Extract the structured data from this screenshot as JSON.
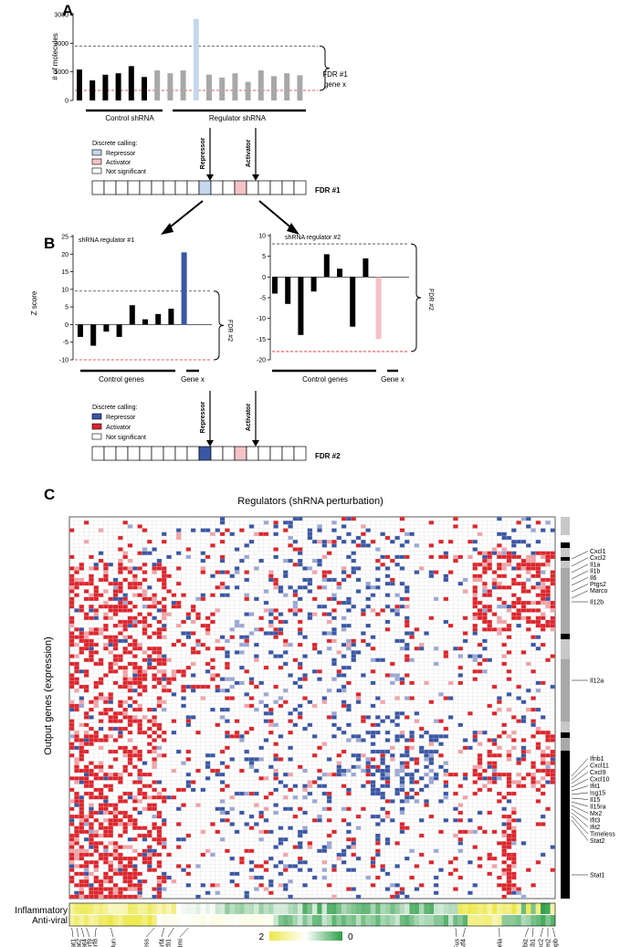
{
  "panel_a": {
    "letter": "A",
    "ylabel": "# of molecules",
    "yticks": [
      "3000",
      "2000",
      "1000",
      "0"
    ],
    "bars": [
      {
        "v": 1080,
        "g": "control"
      },
      {
        "v": 700,
        "g": "control"
      },
      {
        "v": 900,
        "g": "control"
      },
      {
        "v": 950,
        "g": "control"
      },
      {
        "v": 1200,
        "g": "control"
      },
      {
        "v": 820,
        "g": "control"
      },
      {
        "v": 1050,
        "g": "reg"
      },
      {
        "v": 950,
        "g": "reg"
      },
      {
        "v": 1050,
        "g": "reg"
      },
      {
        "v": 2850,
        "g": "hit"
      },
      {
        "v": 900,
        "g": "reg"
      },
      {
        "v": 800,
        "g": "reg"
      },
      {
        "v": 950,
        "g": "reg"
      },
      {
        "v": 650,
        "g": "reg"
      },
      {
        "v": 1050,
        "g": "reg"
      },
      {
        "v": 850,
        "g": "reg"
      },
      {
        "v": 950,
        "g": "reg"
      },
      {
        "v": 880,
        "g": "reg"
      }
    ],
    "upper_threshold": 1900,
    "lower_threshold": 350,
    "fdr_label_1": "FDR #1",
    "fdr_label_2": "gene x",
    "control_label": "Control shRNA",
    "regulator_label": "Regulator shRNA"
  },
  "legend_1": {
    "title": "Discrete calling:",
    "items": [
      {
        "label": "Repressor",
        "color": "#c6d7ee"
      },
      {
        "label": "Activator",
        "color": "#f5c2c7"
      },
      {
        "label": "Not significant",
        "color": "#ffffff"
      }
    ]
  },
  "arrows_1": {
    "repressor": "Repressor",
    "activator": "Activator"
  },
  "strip_1": {
    "label": "FDR #1",
    "cells": [
      "n",
      "n",
      "n",
      "n",
      "n",
      "n",
      "n",
      "n",
      "n",
      "r",
      "n",
      "n",
      "a",
      "n",
      "n",
      "n",
      "n",
      "n"
    ]
  },
  "panel_b": {
    "letter": "B",
    "ylabel": "Z score",
    "left": {
      "title": "shRNA regulator #1",
      "yticks": [
        "25",
        "20",
        "15",
        "10",
        "5",
        "0",
        "-5",
        "-10"
      ],
      "bars": [
        -3.5,
        -6,
        -2,
        -3.5,
        5.5,
        1.5,
        3,
        4.5,
        20.5
      ],
      "upper_threshold": 9.5,
      "lower_threshold": -10,
      "fdr_label": "FDR #2",
      "control_label": "Control genes",
      "gene_label": "Gene x"
    },
    "right": {
      "title": "shRNA regulator #2",
      "yticks": [
        "10",
        "5",
        "0",
        "-5",
        "-10",
        "-15",
        "-20"
      ],
      "bars": [
        -4,
        -6.5,
        -14,
        -3.5,
        5.5,
        2,
        -12,
        4.5,
        -15
      ],
      "upper_threshold": 8,
      "lower_threshold": -18,
      "fdr_label": "FDR #2",
      "control_label": "Control genes",
      "gene_label": "Gene x"
    }
  },
  "legend_2": {
    "title": "Discrete calling:",
    "items": [
      {
        "label": "Repressor",
        "color": "#3a57a6"
      },
      {
        "label": "Activator",
        "color": "#e0242b"
      },
      {
        "label": "Not significant",
        "color": "#ffffff"
      }
    ]
  },
  "arrows_2": {
    "repressor": "Repressor",
    "activator": "Activator"
  },
  "strip_2": {
    "label": "FDR #2",
    "cells": [
      "n",
      "n",
      "n",
      "n",
      "n",
      "n",
      "n",
      "n",
      "n",
      "R",
      "n",
      "n",
      "a",
      "n",
      "n",
      "n",
      "n",
      "n"
    ]
  },
  "panel_c": {
    "letter": "C",
    "title": "Regulators (shRNA perturbation)",
    "ylabel": "Output genes (expression)",
    "rows": 100,
    "cols": 100,
    "right_genes_1": [
      "Cxcl1",
      "Cxcl2",
      "Il1a",
      "Il1b",
      "Il6",
      "Ptgs2",
      "Marco"
    ],
    "right_gene_il12b": "Il12b",
    "right_gene_il12a": "Il12a",
    "right_genes_2": [
      "Ifnb1",
      "Cxcl11",
      "Cxcl9",
      "Cxcl10",
      "Ifit1",
      "Isg15",
      "Il15",
      "Il15ra",
      "Mx2",
      "Ifit3",
      "Ifit2",
      "Timeless",
      "Stat2"
    ],
    "right_gene_stat1": "Stat1",
    "track_inflammatory": "Inflammatory",
    "track_antiviral": "Anti-viral",
    "bottom_regulators": [
      "Stat1",
      "Stat2",
      "Stat4",
      "Irf9",
      "Irf8",
      "Jun",
      "Timeless",
      "Irf4",
      "Rb1",
      "Nmi",
      "Fus",
      "Atf4",
      "Rela",
      "Nfkbiz",
      "Nfkb1",
      "Rnmc2",
      "Pum2",
      "Cebpb"
    ],
    "colorbar_min_label": "2",
    "colorbar_max_label": "0",
    "colors": {
      "red": "#e0242b",
      "light_red": "#f3a3a8",
      "blue": "#3a57a6",
      "light_blue": "#9aa8d6",
      "yellow": "#ece84a",
      "green": "#2e9e47"
    }
  }
}
